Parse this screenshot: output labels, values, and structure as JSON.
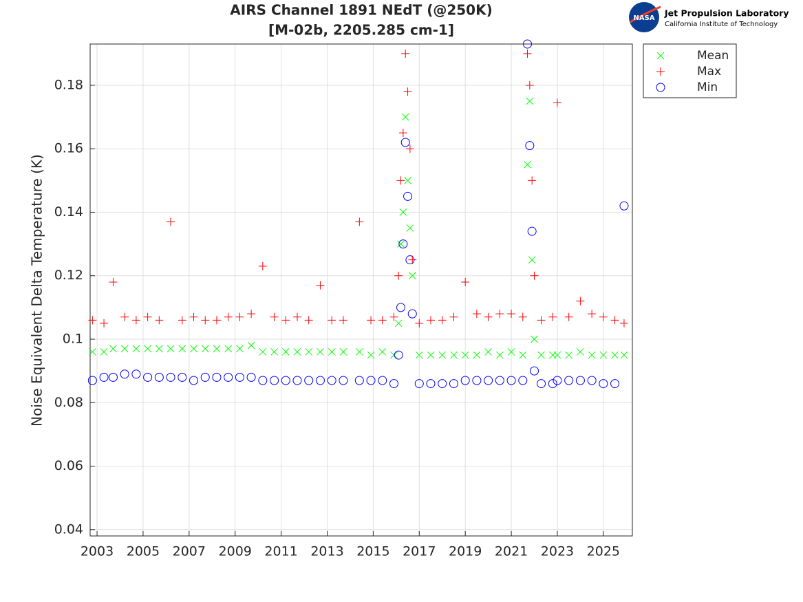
{
  "chart_data": {
    "type": "scatter",
    "title": "AIRS Channel 1891 NEdT (@250K)",
    "subtitle": "[M-02b, 2205.285 cm-1]",
    "y_label": "Noise Equivalent Delta Temperature (K)",
    "xlim": [
      2002.7,
      2026.26
    ],
    "ylim": [
      0.038,
      0.193
    ],
    "xticks": [
      2003,
      2005,
      2007,
      2009,
      2011,
      2013,
      2015,
      2017,
      2019,
      2021,
      2023,
      2025
    ],
    "yticks": [
      0.04,
      0.06,
      0.08,
      0.1,
      0.12,
      0.14,
      0.16,
      0.18
    ],
    "grid": true,
    "legend": "outside-right",
    "x": [
      2002.8,
      2003.3,
      2003.7,
      2004.2,
      2004.7,
      2005.2,
      2005.7,
      2006.2,
      2006.7,
      2007.2,
      2007.7,
      2008.2,
      2008.7,
      2009.2,
      2009.7,
      2010.2,
      2010.7,
      2011.2,
      2011.7,
      2012.2,
      2012.7,
      2013.2,
      2013.7,
      2014.4,
      2014.9,
      2015.4,
      2015.9,
      2016.1,
      2016.2,
      2016.3,
      2016.4,
      2016.5,
      2016.6,
      2016.7,
      2017.0,
      2017.5,
      2018.0,
      2018.5,
      2019.0,
      2019.5,
      2020.0,
      2020.5,
      2021.0,
      2021.5,
      2021.7,
      2021.8,
      2021.9,
      2022.0,
      2022.3,
      2022.8,
      2023.0,
      2023.5,
      2024.0,
      2024.5,
      2025.0,
      2025.5,
      2025.9
    ],
    "series": [
      {
        "name": "Mean",
        "color": "#00ff00",
        "marker": "x",
        "values": [
          0.096,
          0.096,
          0.097,
          0.097,
          0.097,
          0.097,
          0.097,
          0.097,
          0.097,
          0.097,
          0.097,
          0.097,
          0.097,
          0.097,
          0.098,
          0.096,
          0.096,
          0.096,
          0.096,
          0.096,
          0.096,
          0.096,
          0.096,
          0.096,
          0.095,
          0.096,
          0.095,
          0.105,
          0.13,
          0.14,
          0.17,
          0.15,
          0.135,
          0.12,
          0.095,
          0.095,
          0.095,
          0.095,
          0.095,
          0.095,
          0.096,
          0.095,
          0.096,
          0.095,
          0.155,
          0.175,
          0.125,
          0.1,
          0.095,
          0.095,
          0.095,
          0.095,
          0.096,
          0.095,
          0.095,
          0.095,
          0.095
        ]
      },
      {
        "name": "Max",
        "color": "#ff0000",
        "marker": "+",
        "values": [
          0.106,
          0.105,
          0.118,
          0.107,
          0.106,
          0.107,
          0.106,
          0.137,
          0.106,
          0.107,
          0.106,
          0.106,
          0.107,
          0.107,
          0.108,
          0.123,
          0.107,
          0.106,
          0.107,
          0.106,
          0.117,
          0.106,
          0.106,
          0.137,
          0.106,
          0.106,
          0.107,
          0.12,
          0.15,
          0.165,
          0.19,
          0.178,
          0.16,
          0.125,
          0.105,
          0.106,
          0.106,
          0.107,
          0.118,
          0.108,
          0.107,
          0.108,
          0.108,
          0.107,
          0.19,
          0.18,
          0.15,
          0.12,
          0.106,
          0.107,
          0.1745,
          0.107,
          0.112,
          0.108,
          0.107,
          0.106,
          0.105
        ]
      },
      {
        "name": "Min",
        "color": "#0000ff",
        "marker": "o",
        "values": [
          0.087,
          0.088,
          0.088,
          0.089,
          0.089,
          0.088,
          0.088,
          0.088,
          0.088,
          0.087,
          0.088,
          0.088,
          0.088,
          0.088,
          0.088,
          0.087,
          0.087,
          0.087,
          0.087,
          0.087,
          0.087,
          0.087,
          0.087,
          0.087,
          0.087,
          0.087,
          0.086,
          0.095,
          0.11,
          0.13,
          0.162,
          0.145,
          0.125,
          0.108,
          0.086,
          0.086,
          0.086,
          0.086,
          0.087,
          0.087,
          0.087,
          0.087,
          0.087,
          0.087,
          0.193,
          0.161,
          0.134,
          0.09,
          0.086,
          0.086,
          0.087,
          0.087,
          0.087,
          0.087,
          0.086,
          0.086,
          0.142
        ]
      }
    ]
  },
  "logo": {
    "badge": "NASA",
    "title": "Jet Propulsion Laboratory",
    "subtitle": "California Institute of Technology"
  }
}
